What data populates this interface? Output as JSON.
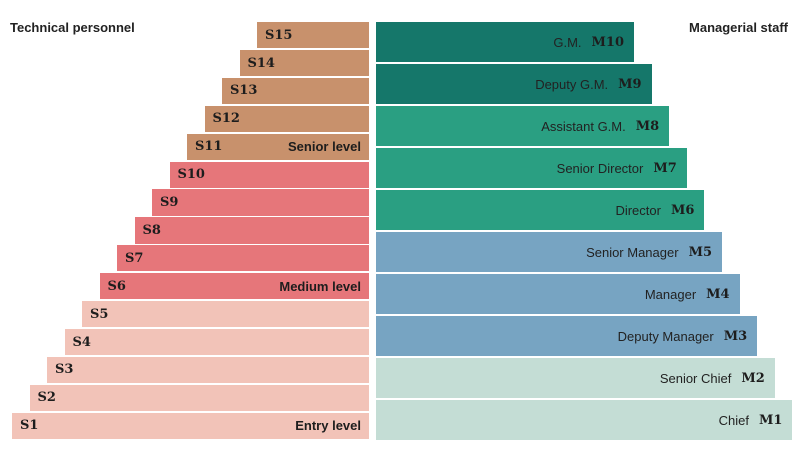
{
  "headings": {
    "left": "Technical personnel",
    "right": "Managerial staff"
  },
  "colors": {
    "senior": "#c8916c",
    "medium": "#e6767a",
    "entry": "#f2c3b8",
    "m_dark": "#15776a",
    "m_teal": "#2a9f82",
    "m_blue": "#77a4c2",
    "m_light": "#c4ddd5"
  },
  "technical": [
    {
      "code": "S15",
      "level": "",
      "group": "senior"
    },
    {
      "code": "S14",
      "level": "",
      "group": "senior"
    },
    {
      "code": "S13",
      "level": "",
      "group": "senior"
    },
    {
      "code": "S12",
      "level": "",
      "group": "senior"
    },
    {
      "code": "S11",
      "level": "Senior level",
      "group": "senior"
    },
    {
      "code": "S10",
      "level": "",
      "group": "medium"
    },
    {
      "code": "S9",
      "level": "",
      "group": "medium"
    },
    {
      "code": "S8",
      "level": "",
      "group": "medium"
    },
    {
      "code": "S7",
      "level": "",
      "group": "medium"
    },
    {
      "code": "S6",
      "level": "Medium level",
      "group": "medium"
    },
    {
      "code": "S5",
      "level": "",
      "group": "entry"
    },
    {
      "code": "S4",
      "level": "",
      "group": "entry"
    },
    {
      "code": "S3",
      "level": "",
      "group": "entry"
    },
    {
      "code": "S2",
      "level": "",
      "group": "entry"
    },
    {
      "code": "S1",
      "level": "Entry level",
      "group": "entry"
    }
  ],
  "managerial": [
    {
      "title": "G.M.",
      "code": "M10",
      "group": "m_dark"
    },
    {
      "title": "Deputy G.M.",
      "code": "M9",
      "group": "m_dark"
    },
    {
      "title": "Assistant G.M.",
      "code": "M8",
      "group": "m_teal"
    },
    {
      "title": "Senior Director",
      "code": "M7",
      "group": "m_teal"
    },
    {
      "title": "Director",
      "code": "M6",
      "group": "m_teal"
    },
    {
      "title": "Senior Manager",
      "code": "M5",
      "group": "m_blue"
    },
    {
      "title": "Manager",
      "code": "M4",
      "group": "m_blue"
    },
    {
      "title": "Deputy Manager",
      "code": "M3",
      "group": "m_blue"
    },
    {
      "title": "Senior Chief",
      "code": "M2",
      "group": "m_light"
    },
    {
      "title": "Chief",
      "code": "M1",
      "group": "m_light"
    }
  ]
}
